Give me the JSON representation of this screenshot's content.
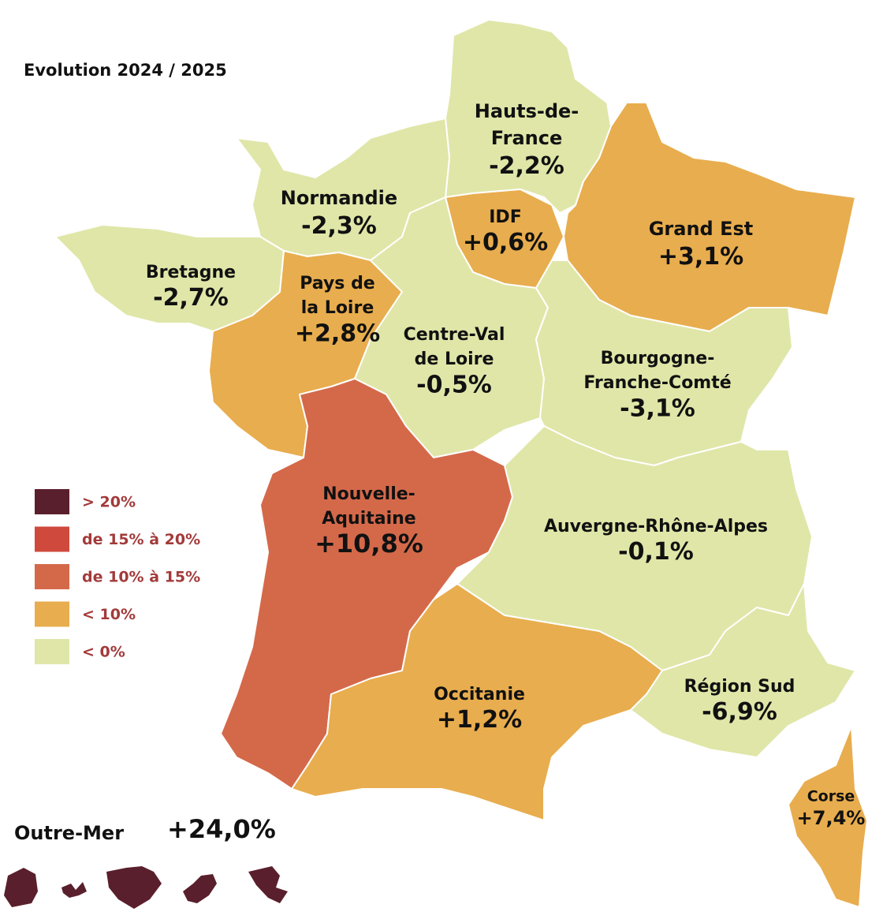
{
  "title": "Evolution 2024 / 2025",
  "regions": [
    {
      "name_lines": [
        "Hauts-de-",
        "France"
      ],
      "value": "-2,2%",
      "color": "#e0e6a8"
    },
    {
      "name_lines": [
        "Normandie"
      ],
      "value": "-2,3%",
      "color": "#e0e6a8"
    },
    {
      "name_lines": [
        "Bretagne"
      ],
      "value": "-2,7%",
      "color": "#e0e6a8"
    },
    {
      "name_lines": [
        "Pays de",
        "la Loire"
      ],
      "value": "+2,8%",
      "color": "#e8ad4e"
    },
    {
      "name_lines": [
        "IDF"
      ],
      "value": "+0,6%",
      "color": "#e8ad4e"
    },
    {
      "name_lines": [
        "Grand Est"
      ],
      "value": "+3,1%",
      "color": "#e8ad4e"
    },
    {
      "name_lines": [
        "Centre-Val",
        "de Loire"
      ],
      "value": "-0,5%",
      "color": "#e0e6a8"
    },
    {
      "name_lines": [
        "Bourgogne-",
        "Franche-Comté"
      ],
      "value": "-3,1%",
      "color": "#e0e6a8"
    },
    {
      "name_lines": [
        "Nouvelle-",
        "Aquitaine"
      ],
      "value": "+10,8%",
      "color": "#d4694a"
    },
    {
      "name_lines": [
        "Auvergne-Rhône-Alpes"
      ],
      "value": "-0,1%",
      "color": "#e0e6a8"
    },
    {
      "name_lines": [
        "Occitanie"
      ],
      "value": "+1,2%",
      "color": "#e8ad4e"
    },
    {
      "name_lines": [
        "Région Sud"
      ],
      "value": "-6,9%",
      "color": "#e0e6a8"
    },
    {
      "name_lines": [
        "Corse"
      ],
      "value": "+7,4%",
      "color": "#e8ad4e"
    }
  ],
  "legend": [
    {
      "label": "> 20%",
      "color": "#5a1f2c"
    },
    {
      "label": "de 15% à 20%",
      "color": "#cf4a3c"
    },
    {
      "label": "de 10% à 15%",
      "color": "#d4694a"
    },
    {
      "label": "< 10%",
      "color": "#e8ad4e"
    },
    {
      "label": "< 0%",
      "color": "#e0e6a8"
    }
  ],
  "outre_mer": {
    "name": "Outre-Mer",
    "value": "+24,0%",
    "color": "#5a1f2c"
  }
}
